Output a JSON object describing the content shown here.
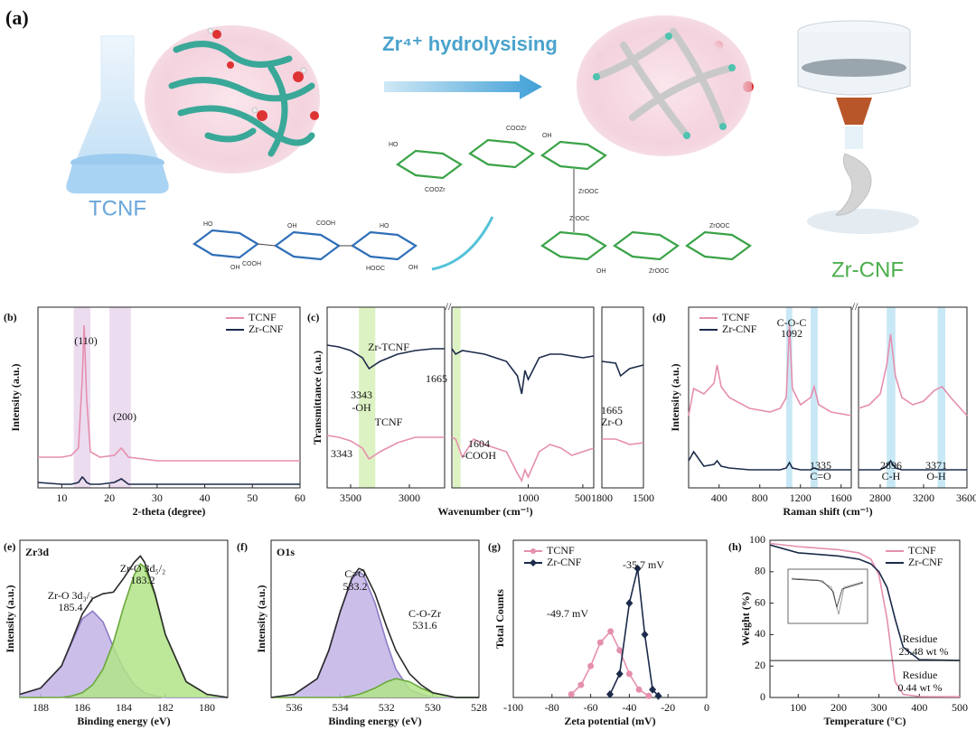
{
  "figure": {
    "panel_label": "(a)",
    "start": "TCNF",
    "process": "Zr⁴⁺ hydrolysising",
    "product": "Zr-CNF",
    "structure_labels": [
      "HO",
      "OH",
      "COOH",
      "HOOC",
      "OH",
      "COOH",
      "HO",
      "OH",
      "COOZr",
      "COOZr",
      "OH",
      "ZrOOC",
      "ZrOOC",
      "ZrOOC",
      "ZrOOC",
      "OH",
      "HO"
    ]
  },
  "chart_data": [
    {
      "type": "line",
      "label": "(b)",
      "xlabel": "2-theta (degree)",
      "ylabel": "Intensity (a.u.)",
      "xlim": [
        5,
        60
      ],
      "xticks": [
        10,
        20,
        30,
        40,
        50,
        60
      ],
      "ylim": [
        0,
        1
      ],
      "legend": "upper right",
      "highlights": [
        [
          12.5,
          16
        ],
        [
          20,
          24.5
        ]
      ],
      "x": [
        5,
        10,
        12,
        13.5,
        14.3,
        14.7,
        15.2,
        16,
        18,
        21,
        22.5,
        24,
        30,
        40,
        50,
        60
      ],
      "series": [
        {
          "name": "TCNF",
          "color": "#e58fae",
          "values": [
            0.17,
            0.17,
            0.18,
            0.22,
            0.6,
            0.9,
            0.5,
            0.2,
            0.17,
            0.18,
            0.22,
            0.17,
            0.15,
            0.15,
            0.15,
            0.15
          ]
        },
        {
          "name": "Zr-CNF",
          "color": "#1c2b4a",
          "values": [
            0.03,
            0.02,
            0.02,
            0.03,
            0.06,
            0.05,
            0.03,
            0.02,
            0.02,
            0.03,
            0.05,
            0.02,
            0.02,
            0.02,
            0.02,
            0.02
          ]
        }
      ],
      "annotations": [
        "(110)",
        "(200)"
      ]
    },
    {
      "type": "line",
      "label": "(c)",
      "xlabel": "Wavenumber (cm⁻¹)",
      "ylabel": "Transmittance (a.u.)",
      "ylim": [
        0,
        1
      ],
      "axes": [
        {
          "xlim": [
            3700,
            2700
          ],
          "xticks": [
            3500,
            3000
          ],
          "highlights": [
            [
              3430,
              3290
            ]
          ],
          "x": [
            3700,
            3600,
            3500,
            3400,
            3343,
            3250,
            3100,
            2950,
            2800,
            2700
          ]
        },
        {
          "xlim": [
            1700,
            400
          ],
          "xticks": [
            1000,
            500
          ],
          "highlights": [
            [
              1690,
              1620
            ]
          ],
          "x": [
            1700,
            1665,
            1604,
            1500,
            1400,
            1300,
            1200,
            1100,
            1060,
            1030,
            1000,
            900,
            800,
            700,
            600,
            500,
            400
          ]
        },
        {
          "xlim": [
            1800,
            1500
          ],
          "xticks": [
            1800,
            1500
          ],
          "highlights": [],
          "x": [
            1800,
            1700,
            1665,
            1600,
            1500
          ]
        }
      ],
      "series": [
        {
          "name": "Zr-TCNF",
          "color": "#1c2b4a",
          "values": [
            [
              0.79,
              0.78,
              0.76,
              0.72,
              0.66,
              0.7,
              0.74,
              0.76,
              0.77,
              0.77
            ],
            [
              0.77,
              0.74,
              0.76,
              0.75,
              0.74,
              0.72,
              0.7,
              0.62,
              0.52,
              0.65,
              0.6,
              0.72,
              0.74,
              0.74,
              0.73,
              0.72,
              0.73
            ],
            [
              0.7,
              0.69,
              0.62,
              0.66,
              0.68
            ]
          ]
        },
        {
          "name": "TCNF",
          "color": "#e58fae",
          "values": [
            [
              0.29,
              0.28,
              0.26,
              0.22,
              0.16,
              0.2,
              0.25,
              0.28,
              0.28,
              0.28
            ],
            [
              0.28,
              0.27,
              0.17,
              0.27,
              0.24,
              0.22,
              0.2,
              0.08,
              0.04,
              0.1,
              0.06,
              0.2,
              0.24,
              0.22,
              0.18,
              0.2,
              0.22
            ],
            [
              0.27,
              0.27,
              0.26,
              0.24,
              0.25
            ]
          ]
        }
      ],
      "annotations": [
        "3343",
        "-OH",
        "1665",
        "3343",
        "1604",
        "-COOH",
        "1665",
        "Zr-O"
      ]
    },
    {
      "type": "line",
      "label": "(d)",
      "xlabel": "Raman shift (cm⁻¹)",
      "ylabel": "Intensity (a.u.)",
      "ylim": [
        0,
        1
      ],
      "legend": "upper left",
      "axes": [
        {
          "xlim": [
            100,
            1700
          ],
          "xticks": [
            400,
            800,
            1200,
            1600
          ],
          "highlights": [
            [
              1060,
              1120
            ],
            [
              1300,
              1370
            ]
          ],
          "x": [
            100,
            150,
            250,
            350,
            380,
            420,
            500,
            700,
            900,
            1000,
            1060,
            1092,
            1120,
            1200,
            1300,
            1335,
            1380,
            1500,
            1700
          ]
        },
        {
          "xlim": [
            2600,
            3600
          ],
          "xticks": [
            2800,
            3200,
            3600
          ],
          "highlights": [
            [
              2860,
              2940
            ],
            [
              3330,
              3400
            ]
          ],
          "x": [
            2600,
            2700,
            2800,
            2860,
            2896,
            2940,
            3000,
            3100,
            3200,
            3300,
            3371,
            3450,
            3600
          ]
        }
      ],
      "series": [
        {
          "name": "TCNF",
          "color": "#e58fae",
          "values": [
            [
              0.4,
              0.55,
              0.52,
              0.58,
              0.68,
              0.56,
              0.5,
              0.44,
              0.42,
              0.44,
              0.5,
              0.9,
              0.55,
              0.46,
              0.5,
              0.56,
              0.46,
              0.42,
              0.4
            ],
            [
              0.44,
              0.46,
              0.52,
              0.68,
              0.85,
              0.62,
              0.5,
              0.46,
              0.48,
              0.54,
              0.56,
              0.5,
              0.4
            ]
          ]
        },
        {
          "name": "Zr-CNF",
          "color": "#1c2b4a",
          "values": [
            [
              0.15,
              0.2,
              0.12,
              0.13,
              0.15,
              0.12,
              0.11,
              0.1,
              0.1,
              0.1,
              0.11,
              0.14,
              0.11,
              0.1,
              0.1,
              0.11,
              0.1,
              0.1,
              0.1
            ],
            [
              0.1,
              0.1,
              0.1,
              0.12,
              0.15,
              0.11,
              0.1,
              0.1,
              0.1,
              0.1,
              0.1,
              0.1,
              0.1
            ]
          ]
        }
      ],
      "annotations": [
        "C-O-C",
        "1092",
        "1335",
        "C=O",
        "2896",
        "C-H",
        "3371",
        "O-H"
      ]
    },
    {
      "type": "area",
      "label": "(e)",
      "title": "Zr3d",
      "xlabel": "Binding energy (eV)",
      "ylabel": "Intensity (a.u.)",
      "xlim": [
        189,
        179
      ],
      "xticks": [
        188,
        186,
        184,
        182,
        180
      ],
      "ylim": [
        0,
        1
      ],
      "x": [
        189,
        188,
        187,
        186.5,
        186,
        185.5,
        185,
        184.5,
        184,
        183.5,
        183.2,
        183,
        182.5,
        182,
        181,
        180,
        179
      ],
      "series": [
        {
          "color": "#8d7cc4",
          "fill": "#c2b4e6",
          "values": [
            0.02,
            0.06,
            0.2,
            0.35,
            0.5,
            0.55,
            0.48,
            0.32,
            0.18,
            0.08,
            0.05,
            0.03,
            0.01,
            0,
            0,
            0,
            0
          ]
        },
        {
          "color": "#6aa83c",
          "fill": "#b2e487",
          "values": [
            0,
            0,
            0,
            0.01,
            0.03,
            0.08,
            0.18,
            0.35,
            0.58,
            0.78,
            0.85,
            0.83,
            0.65,
            0.4,
            0.1,
            0.02,
            0
          ]
        },
        {
          "color": "#2b2b2b",
          "values": [
            0.02,
            0.06,
            0.2,
            0.36,
            0.53,
            0.63,
            0.66,
            0.67,
            0.76,
            0.86,
            0.9,
            0.86,
            0.66,
            0.4,
            0.1,
            0.02,
            0
          ]
        }
      ],
      "annotations": [
        "Zr-O 3d₃/₂",
        "185.4",
        "Zr-O 3d₅/₂",
        "183.2"
      ]
    },
    {
      "type": "area",
      "label": "(f)",
      "title": "O1s",
      "xlabel": "Binding energy (eV)",
      "ylabel": "Intensity (a.u.)",
      "xlim": [
        537,
        528
      ],
      "xticks": [
        536,
        534,
        532,
        530,
        528
      ],
      "ylim": [
        0,
        1
      ],
      "x": [
        537,
        536,
        535,
        534.5,
        534,
        533.5,
        533.2,
        533,
        532.5,
        532,
        531.6,
        531,
        530.5,
        530,
        529,
        528
      ],
      "series": [
        {
          "color": "#8d7cc4",
          "fill": "#c2b4e6",
          "values": [
            0,
            0.02,
            0.12,
            0.3,
            0.55,
            0.75,
            0.8,
            0.78,
            0.6,
            0.35,
            0.18,
            0.05,
            0.02,
            0,
            0,
            0
          ]
        },
        {
          "color": "#6aa83c",
          "fill": "#b2e487",
          "values": [
            0,
            0,
            0,
            0,
            0,
            0.01,
            0.02,
            0.03,
            0.06,
            0.1,
            0.12,
            0.1,
            0.06,
            0.03,
            0,
            0
          ]
        },
        {
          "color": "#2b2b2b",
          "values": [
            0,
            0.02,
            0.12,
            0.3,
            0.55,
            0.76,
            0.82,
            0.81,
            0.66,
            0.45,
            0.3,
            0.15,
            0.08,
            0.03,
            0,
            0
          ]
        }
      ],
      "annotations": [
        "C=O",
        "533.2",
        "C-O-Zr",
        "531.6"
      ]
    },
    {
      "type": "line",
      "label": "(g)",
      "xlabel": "Zeta potential (mV)",
      "ylabel": "Total Counts",
      "xlim": [
        -100,
        0
      ],
      "xticks": [
        -100,
        -80,
        -60,
        -40,
        -20,
        0
      ],
      "ylim": [
        0,
        1
      ],
      "legend": "upper left",
      "series": [
        {
          "name": "TCNF",
          "color": "#e58fae",
          "marker": "circle",
          "x": [
            -70,
            -65,
            -60,
            -55,
            -49.7,
            -45,
            -40,
            -35,
            -30
          ],
          "values": [
            0.02,
            0.08,
            0.2,
            0.35,
            0.42,
            0.3,
            0.15,
            0.05,
            0.01
          ]
        },
        {
          "name": "Zr-CNF",
          "color": "#1c2b4a",
          "marker": "diamond",
          "x": [
            -50,
            -45,
            -40,
            -35.7,
            -32,
            -28,
            -25
          ],
          "values": [
            0.02,
            0.15,
            0.6,
            0.82,
            0.4,
            0.05,
            0.01
          ]
        }
      ],
      "annotations": [
        "-49.7 mV",
        "-35.7 mV"
      ]
    },
    {
      "type": "line",
      "label": "(h)",
      "xlabel": "Temperature (°C)",
      "ylabel": "Weight (%)",
      "xlim": [
        30,
        500
      ],
      "xticks": [
        100,
        200,
        300,
        400,
        500
      ],
      "ylim": [
        0,
        100
      ],
      "yticks": [
        0,
        20,
        40,
        60,
        80,
        100
      ],
      "legend": "upper right",
      "x": [
        30,
        100,
        200,
        250,
        280,
        300,
        320,
        340,
        360,
        400,
        500
      ],
      "series": [
        {
          "name": "TCNF",
          "color": "#e58fae",
          "values": [
            98,
            96,
            94,
            92,
            88,
            78,
            50,
            10,
            2,
            0.6,
            0.44
          ]
        },
        {
          "name": "Zr-CNF",
          "color": "#1c2b4a",
          "values": [
            97,
            92,
            90,
            88,
            85,
            80,
            70,
            50,
            32,
            24,
            23.48
          ]
        }
      ],
      "annotations": [
        "Residue",
        "23.48 wt %",
        "Residue",
        "0.44 wt %"
      ]
    }
  ]
}
